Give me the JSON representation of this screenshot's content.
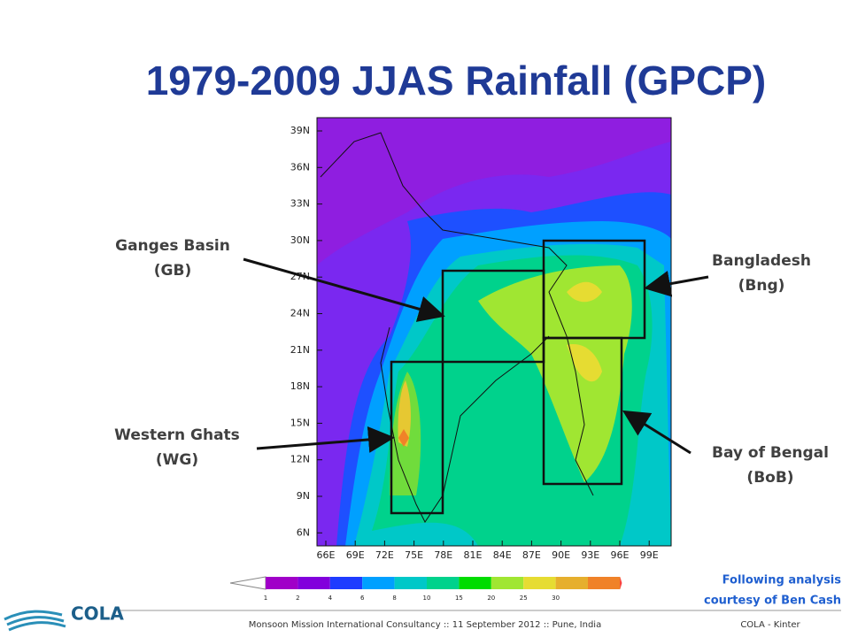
{
  "title": "1979-2009 JJAS Rainfall (GPCP)",
  "map": {
    "lat_labels": [
      "39N",
      "36N",
      "33N",
      "30N",
      "27N",
      "24N",
      "21N",
      "18N",
      "15N",
      "12N",
      "9N",
      "6N"
    ],
    "lon_labels": [
      "66E",
      "69E",
      "72E",
      "75E",
      "78E",
      "81E",
      "84E",
      "87E",
      "90E",
      "93E",
      "96E",
      "99E"
    ]
  },
  "regions": [
    {
      "name": "Ganges Basin",
      "abbr": "(GB)"
    },
    {
      "name": "Bangladesh",
      "abbr": "(Bng)"
    },
    {
      "name": "Western Ghats",
      "abbr": "(WG)"
    },
    {
      "name": "Bay of Bengal",
      "abbr": "(BoB)"
    }
  ],
  "colorbar": {
    "labels": [
      1,
      2,
      4,
      6,
      8,
      10,
      15,
      20,
      25,
      30
    ]
  },
  "note": [
    "Following analysis",
    "courtesy of Ben Cash"
  ],
  "logo": "COLA",
  "footer": {
    "event": "Monsoon Mission International Consultancy :: 11 September 2012 :: Pune, India",
    "credit": "COLA - Kinter"
  }
}
